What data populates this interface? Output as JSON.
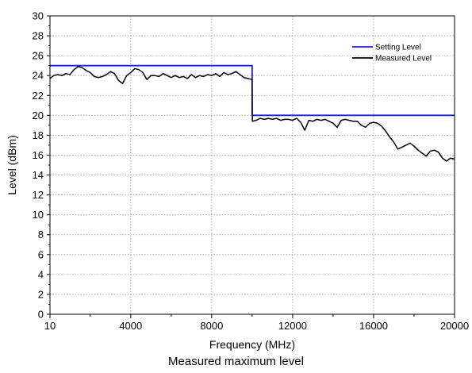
{
  "caption": "Measured maximum level",
  "chart_data": {
    "type": "line",
    "title": "",
    "xlabel": "Frequency (MHz)",
    "ylabel": "Level (dBm)",
    "xlim": [
      10,
      20000
    ],
    "ylim": [
      0,
      30
    ],
    "x_ticks": [
      {
        "value": 10,
        "label": "10"
      },
      {
        "value": 4000,
        "label": "4000"
      },
      {
        "value": 8000,
        "label": "8000"
      },
      {
        "value": 12000,
        "label": "12000"
      },
      {
        "value": 16000,
        "label": "16000"
      },
      {
        "value": 20000,
        "label": "20000"
      }
    ],
    "y_ticks": [
      0,
      2,
      4,
      6,
      8,
      10,
      12,
      14,
      16,
      18,
      20,
      22,
      24,
      26,
      28,
      30
    ],
    "grid": true,
    "legend_position": "top-right",
    "series": [
      {
        "name": "Setting Level",
        "color": "#1f1fd6",
        "points": [
          [
            10,
            25
          ],
          [
            10000,
            25
          ],
          [
            10000,
            20
          ],
          [
            20000,
            20
          ]
        ]
      },
      {
        "name": "Measured Level",
        "color": "#000000",
        "points": [
          [
            10,
            23.7
          ],
          [
            200,
            24.0
          ],
          [
            400,
            24.1
          ],
          [
            600,
            24.0
          ],
          [
            800,
            24.2
          ],
          [
            1000,
            24.1
          ],
          [
            1200,
            24.6
          ],
          [
            1400,
            24.9
          ],
          [
            1600,
            24.8
          ],
          [
            1800,
            24.5
          ],
          [
            2000,
            24.3
          ],
          [
            2200,
            23.9
          ],
          [
            2400,
            23.8
          ],
          [
            2600,
            23.9
          ],
          [
            2800,
            24.1
          ],
          [
            3000,
            24.4
          ],
          [
            3200,
            24.2
          ],
          [
            3400,
            23.5
          ],
          [
            3600,
            23.2
          ],
          [
            3800,
            24.0
          ],
          [
            4000,
            24.3
          ],
          [
            4200,
            24.7
          ],
          [
            4400,
            24.6
          ],
          [
            4600,
            24.3
          ],
          [
            4800,
            23.6
          ],
          [
            5000,
            24.0
          ],
          [
            5200,
            24.0
          ],
          [
            5400,
            23.9
          ],
          [
            5600,
            24.2
          ],
          [
            5800,
            24.0
          ],
          [
            6000,
            23.8
          ],
          [
            6200,
            24.0
          ],
          [
            6400,
            23.8
          ],
          [
            6600,
            23.9
          ],
          [
            6800,
            23.7
          ],
          [
            7000,
            24.1
          ],
          [
            7200,
            23.8
          ],
          [
            7400,
            24.0
          ],
          [
            7600,
            23.9
          ],
          [
            7800,
            24.1
          ],
          [
            8000,
            24.0
          ],
          [
            8200,
            24.2
          ],
          [
            8400,
            23.9
          ],
          [
            8600,
            24.3
          ],
          [
            8800,
            24.1
          ],
          [
            9000,
            24.2
          ],
          [
            9200,
            24.4
          ],
          [
            9400,
            24.1
          ],
          [
            9600,
            23.8
          ],
          [
            9800,
            23.7
          ],
          [
            9990,
            23.6
          ],
          [
            10010,
            19.4
          ],
          [
            10200,
            19.5
          ],
          [
            10400,
            19.7
          ],
          [
            10600,
            19.6
          ],
          [
            10800,
            19.7
          ],
          [
            11000,
            19.6
          ],
          [
            11200,
            19.7
          ],
          [
            11400,
            19.5
          ],
          [
            11600,
            19.6
          ],
          [
            11800,
            19.6
          ],
          [
            12000,
            19.5
          ],
          [
            12200,
            19.7
          ],
          [
            12400,
            19.3
          ],
          [
            12600,
            18.5
          ],
          [
            12800,
            19.5
          ],
          [
            13000,
            19.4
          ],
          [
            13200,
            19.6
          ],
          [
            13400,
            19.5
          ],
          [
            13600,
            19.6
          ],
          [
            13800,
            19.4
          ],
          [
            14000,
            19.2
          ],
          [
            14200,
            18.8
          ],
          [
            14400,
            19.5
          ],
          [
            14600,
            19.6
          ],
          [
            14800,
            19.5
          ],
          [
            15000,
            19.4
          ],
          [
            15200,
            19.4
          ],
          [
            15400,
            19.0
          ],
          [
            15600,
            18.8
          ],
          [
            15800,
            19.2
          ],
          [
            16000,
            19.3
          ],
          [
            16200,
            19.2
          ],
          [
            16400,
            18.9
          ],
          [
            16600,
            18.4
          ],
          [
            16800,
            17.8
          ],
          [
            17000,
            17.3
          ],
          [
            17200,
            16.6
          ],
          [
            17400,
            16.8
          ],
          [
            17600,
            17.0
          ],
          [
            17800,
            17.2
          ],
          [
            18000,
            16.9
          ],
          [
            18200,
            16.5
          ],
          [
            18400,
            16.2
          ],
          [
            18600,
            15.9
          ],
          [
            18800,
            16.4
          ],
          [
            19000,
            16.5
          ],
          [
            19200,
            16.3
          ],
          [
            19400,
            15.7
          ],
          [
            19600,
            15.4
          ],
          [
            19800,
            15.7
          ],
          [
            20000,
            15.6
          ]
        ]
      }
    ]
  }
}
